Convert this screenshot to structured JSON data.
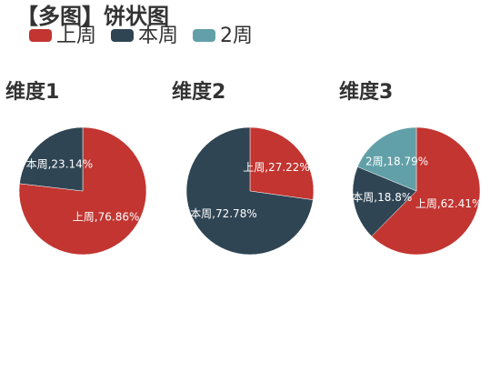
{
  "title": "【多图】饼状图",
  "legend": [
    {
      "name": "上周",
      "color": "#c23531"
    },
    {
      "name": "本周",
      "color": "#2f4554"
    },
    {
      "name": "2周",
      "color": "#61a0a8"
    }
  ],
  "chart_data": [
    {
      "type": "pie",
      "title": "维度1",
      "categories": [
        "上周",
        "本周"
      ],
      "values": [
        76.86,
        23.14
      ],
      "value_labels": [
        "上周,76.86%",
        "本周,23.14%"
      ]
    },
    {
      "type": "pie",
      "title": "维度2",
      "categories": [
        "上周",
        "本周"
      ],
      "values": [
        27.22,
        72.78
      ],
      "value_labels": [
        "上周,27.22%",
        "本周,72.78%"
      ]
    },
    {
      "type": "pie",
      "title": "维度3",
      "categories": [
        "上周",
        "本周",
        "2周"
      ],
      "values": [
        62.41,
        18.8,
        18.79
      ],
      "value_labels": [
        "上周,62.41%",
        "本周,18.8%",
        "2周,18.79%"
      ]
    }
  ]
}
